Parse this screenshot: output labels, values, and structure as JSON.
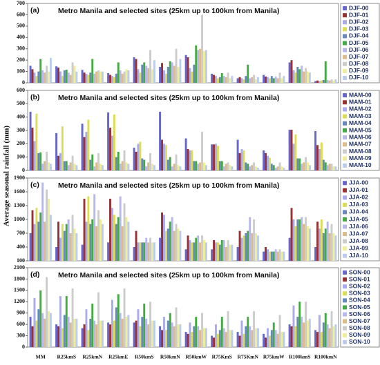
{
  "y_axis_label": "Average seasonal rainfall (mm)",
  "chart_data": [
    {
      "type": "bar",
      "panel": "(a)",
      "title": "Metro Manila and selected sites (25km up to 100km from Manila)",
      "ylim": [
        0,
        700
      ],
      "yticks": [
        0,
        100,
        200,
        300,
        400,
        500,
        600,
        700
      ],
      "series": [
        {
          "name": "DJF-00",
          "color": "#6666cc",
          "values": [
            150,
            145,
            115,
            85,
            225,
            140,
            245,
            80,
            40,
            70,
            180,
            15
          ]
        },
        {
          "name": "DJF-01",
          "color": "#993333",
          "values": [
            120,
            135,
            90,
            70,
            210,
            175,
            225,
            70,
            50,
            55,
            200,
            20
          ]
        },
        {
          "name": "DJF-02",
          "color": "#aaaaee",
          "values": [
            90,
            100,
            80,
            60,
            120,
            110,
            130,
            60,
            40,
            50,
            110,
            15
          ]
        },
        {
          "name": "DJF-03",
          "color": "#dddd55",
          "values": [
            60,
            60,
            70,
            50,
            90,
            80,
            100,
            40,
            30,
            40,
            90,
            20
          ]
        },
        {
          "name": "DJF-04",
          "color": "#6688bb",
          "values": [
            100,
            110,
            90,
            80,
            160,
            140,
            160,
            50,
            60,
            60,
            140,
            25
          ]
        },
        {
          "name": "DJF-05",
          "color": "#44aa44",
          "values": [
            210,
            115,
            210,
            180,
            180,
            190,
            330,
            85,
            160,
            40,
            120,
            190
          ]
        },
        {
          "name": "DJF-06",
          "color": "#b8b8ee",
          "values": [
            110,
            90,
            80,
            110,
            150,
            180,
            290,
            60,
            40,
            55,
            150,
            25
          ]
        },
        {
          "name": "DJF-07",
          "color": "#ddbb88",
          "values": [
            90,
            70,
            100,
            80,
            130,
            150,
            300,
            50,
            50,
            40,
            100,
            20
          ]
        },
        {
          "name": "DJF-08",
          "color": "#cccccc",
          "values": [
            150,
            180,
            110,
            100,
            290,
            300,
            600,
            90,
            70,
            90,
            130,
            30
          ]
        },
        {
          "name": "DJF-09",
          "color": "#eeee99",
          "values": [
            100,
            150,
            100,
            120,
            120,
            140,
            280,
            40,
            30,
            40,
            100,
            20
          ]
        },
        {
          "name": "DJF-10",
          "color": "#bbccee",
          "values": [
            220,
            100,
            100,
            110,
            200,
            210,
            290,
            60,
            50,
            60,
            90,
            30
          ]
        }
      ]
    },
    {
      "type": "bar",
      "panel": "(b)",
      "title": "Metro Manila and selected  sites (25km up to 100km from Manila)",
      "ylim": [
        0,
        600
      ],
      "yticks": [
        0,
        100,
        200,
        300,
        400,
        500,
        600
      ],
      "series": [
        {
          "name": "MAM-00",
          "color": "#6666cc",
          "values": [
            440,
            280,
            350,
            435,
            170,
            440,
            240,
            195,
            230,
            150,
            305,
            295
          ]
        },
        {
          "name": "MAM-01",
          "color": "#993333",
          "values": [
            320,
            110,
            250,
            320,
            140,
            230,
            160,
            195,
            130,
            130,
            305,
            190
          ]
        },
        {
          "name": "MAM-02",
          "color": "#aaaaee",
          "values": [
            220,
            130,
            290,
            260,
            200,
            200,
            150,
            200,
            160,
            110,
            200,
            160
          ]
        },
        {
          "name": "MAM-03",
          "color": "#dddd55",
          "values": [
            425,
            330,
            380,
            420,
            215,
            190,
            150,
            185,
            150,
            95,
            270,
            210
          ]
        },
        {
          "name": "MAM-04",
          "color": "#6688bb",
          "values": [
            130,
            70,
            80,
            100,
            90,
            80,
            70,
            70,
            60,
            50,
            90,
            80
          ]
        },
        {
          "name": "MAM-05",
          "color": "#44aa44",
          "values": [
            135,
            70,
            120,
            140,
            80,
            100,
            70,
            70,
            50,
            40,
            90,
            60
          ]
        },
        {
          "name": "MAM-06",
          "color": "#b8b8ee",
          "values": [
            50,
            40,
            30,
            50,
            30,
            30,
            50,
            30,
            30,
            20,
            50,
            40
          ]
        },
        {
          "name": "MAM-07",
          "color": "#ddbb88",
          "values": [
            70,
            60,
            60,
            70,
            60,
            50,
            60,
            50,
            40,
            30,
            60,
            50
          ]
        },
        {
          "name": "MAM-08",
          "color": "#cccccc",
          "values": [
            140,
            110,
            130,
            150,
            130,
            120,
            290,
            60,
            60,
            60,
            100,
            50
          ]
        },
        {
          "name": "MAM-09",
          "color": "#eeee99",
          "values": [
            60,
            50,
            50,
            60,
            50,
            40,
            60,
            40,
            30,
            30,
            60,
            30
          ]
        },
        {
          "name": "MAM-10",
          "color": "#bbccee",
          "values": [
            50,
            40,
            40,
            50,
            40,
            30,
            40,
            30,
            20,
            20,
            40,
            30
          ]
        }
      ]
    },
    {
      "type": "bar",
      "panel": "(c)",
      "title": "Metro Manila and selected sites (25km up to 100km from Manila)",
      "ylim": [
        100,
        1900
      ],
      "yticks": [
        100,
        400,
        700,
        1000,
        1300,
        1600,
        1900
      ],
      "series": [
        {
          "name": "JJA-00",
          "color": "#6666cc",
          "values": [
            700,
            400,
            450,
            500,
            400,
            600,
            350,
            350,
            400,
            300,
            600,
            400
          ]
        },
        {
          "name": "JJA-01",
          "color": "#993333",
          "values": [
            1200,
            950,
            1450,
            1450,
            750,
            1150,
            650,
            550,
            750,
            400,
            1250,
            950
          ]
        },
        {
          "name": "JJA-02",
          "color": "#aaaaee",
          "values": [
            900,
            600,
            950,
            1250,
            500,
            1100,
            550,
            500,
            600,
            350,
            1000,
            800
          ]
        },
        {
          "name": "JJA-03",
          "color": "#dddd55",
          "values": [
            1250,
            900,
            1500,
            1100,
            500,
            750,
            500,
            500,
            650,
            300,
            850,
            1000
          ]
        },
        {
          "name": "JJA-04",
          "color": "#6688bb",
          "values": [
            950,
            750,
            900,
            900,
            500,
            800,
            500,
            450,
            700,
            300,
            1000,
            700
          ]
        },
        {
          "name": "JJA-05",
          "color": "#44aa44",
          "values": [
            1150,
            900,
            1000,
            1050,
            500,
            950,
            600,
            550,
            750,
            300,
            1000,
            800
          ]
        },
        {
          "name": "JJA-06",
          "color": "#b8b8ee",
          "values": [
            1800,
            1000,
            1550,
            1500,
            600,
            1050,
            650,
            550,
            1050,
            350,
            1050,
            950
          ]
        },
        {
          "name": "JJA-07",
          "color": "#ddbb88",
          "values": [
            950,
            700,
            850,
            850,
            500,
            750,
            500,
            400,
            700,
            300,
            900,
            700
          ]
        },
        {
          "name": "JJA-08",
          "color": "#cccccc",
          "values": [
            1650,
            1100,
            1200,
            1350,
            600,
            900,
            650,
            550,
            1000,
            350,
            1050,
            900
          ]
        },
        {
          "name": "JJA-09",
          "color": "#eeee99",
          "values": [
            1450,
            800,
            1000,
            1050,
            500,
            800,
            550,
            450,
            700,
            300,
            850,
            700
          ]
        },
        {
          "name": "JJA-10",
          "color": "#bbccee",
          "values": [
            1100,
            700,
            900,
            950,
            500,
            750,
            500,
            450,
            650,
            300,
            800,
            650
          ]
        }
      ]
    },
    {
      "type": "bar",
      "panel": "(d)",
      "title": "Metro Manila and selected sites (25km up to 100km from Manila)",
      "categories": [
        "MM",
        "R25kmS",
        "R25kmN",
        "R25kmE",
        "R50kmS",
        "R50kmN",
        "R50kmW",
        "R75KmS",
        "R75KmN",
        "R75kmW",
        "R100kmS",
        "R100kmN"
      ],
      "ylim": [
        0,
        2100
      ],
      "yticks": [
        0,
        300,
        600,
        900,
        1200,
        1500,
        1800,
        2100
      ],
      "series": [
        {
          "name": "SON-00",
          "color": "#6666cc",
          "values": [
            800,
            600,
            500,
            650,
            650,
            550,
            400,
            300,
            400,
            350,
            600,
            450
          ]
        },
        {
          "name": "SON-01",
          "color": "#993333",
          "values": [
            550,
            550,
            600,
            600,
            700,
            450,
            350,
            250,
            300,
            250,
            550,
            400
          ]
        },
        {
          "name": "SON-02",
          "color": "#aaaaee",
          "values": [
            1300,
            1350,
            1000,
            1250,
            1000,
            800,
            650,
            600,
            700,
            500,
            1100,
            850
          ]
        },
        {
          "name": "SON-03",
          "color": "#dddd55",
          "values": [
            700,
            500,
            450,
            700,
            550,
            450,
            400,
            350,
            350,
            300,
            550,
            400
          ]
        },
        {
          "name": "SON-04",
          "color": "#6688bb",
          "values": [
            1000,
            850,
            750,
            1050,
            800,
            700,
            550,
            450,
            550,
            450,
            800,
            650
          ]
        },
        {
          "name": "SON-05",
          "color": "#44aa44",
          "values": [
            1500,
            1350,
            1150,
            1400,
            1150,
            900,
            800,
            800,
            800,
            650,
            1200,
            900
          ]
        },
        {
          "name": "SON-06",
          "color": "#b8b8ee",
          "values": [
            900,
            800,
            700,
            900,
            750,
            650,
            550,
            500,
            550,
            450,
            800,
            600
          ]
        },
        {
          "name": "SON-07",
          "color": "#ddbb88",
          "values": [
            750,
            650,
            600,
            750,
            600,
            550,
            450,
            400,
            450,
            350,
            650,
            500
          ]
        },
        {
          "name": "SON-08",
          "color": "#cccccc",
          "values": [
            1850,
            1550,
            1450,
            1550,
            1200,
            1050,
            900,
            950,
            950,
            850,
            1200,
            950
          ]
        },
        {
          "name": "SON-09",
          "color": "#eeee99",
          "values": [
            950,
            750,
            700,
            800,
            700,
            600,
            500,
            450,
            500,
            400,
            700,
            550
          ]
        },
        {
          "name": "SON-10",
          "color": "#bbccee",
          "values": [
            900,
            750,
            700,
            850,
            700,
            600,
            500,
            450,
            500,
            400,
            750,
            600
          ]
        }
      ]
    }
  ]
}
